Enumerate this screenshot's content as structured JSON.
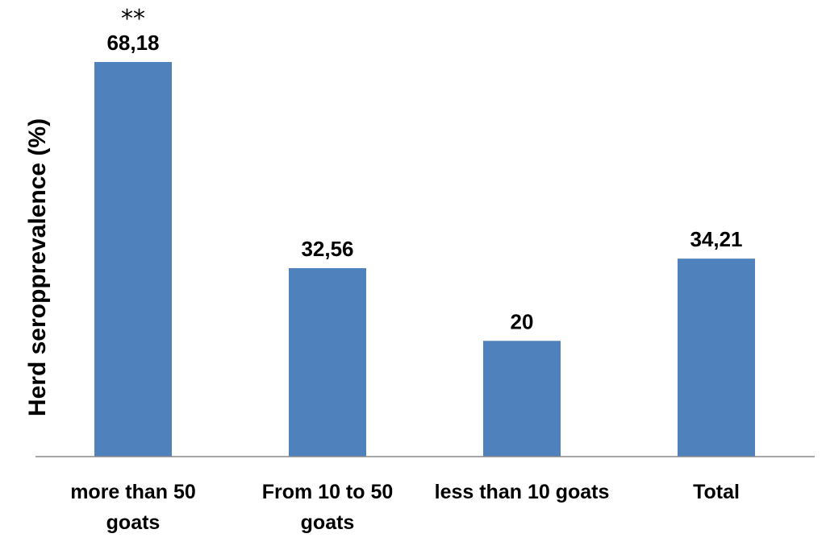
{
  "chart_data": {
    "type": "bar",
    "categories": [
      [
        "more than 50",
        "goats"
      ],
      [
        "From 10 to 50",
        "goats"
      ],
      [
        "less than 10 goats"
      ],
      [
        "Total"
      ]
    ],
    "values": [
      68.18,
      32.56,
      20,
      34.21
    ],
    "data_labels": [
      "68,18",
      "32,56",
      "20",
      "34,21"
    ],
    "annotations": [
      {
        "category_index": 0,
        "text": "**"
      }
    ],
    "title": "",
    "xlabel": "",
    "ylabel": "Herd seropprevalence (%)",
    "ylim": [
      0,
      68.18
    ],
    "grid": false,
    "legend": "none",
    "bar_color": "#4f81bd"
  }
}
